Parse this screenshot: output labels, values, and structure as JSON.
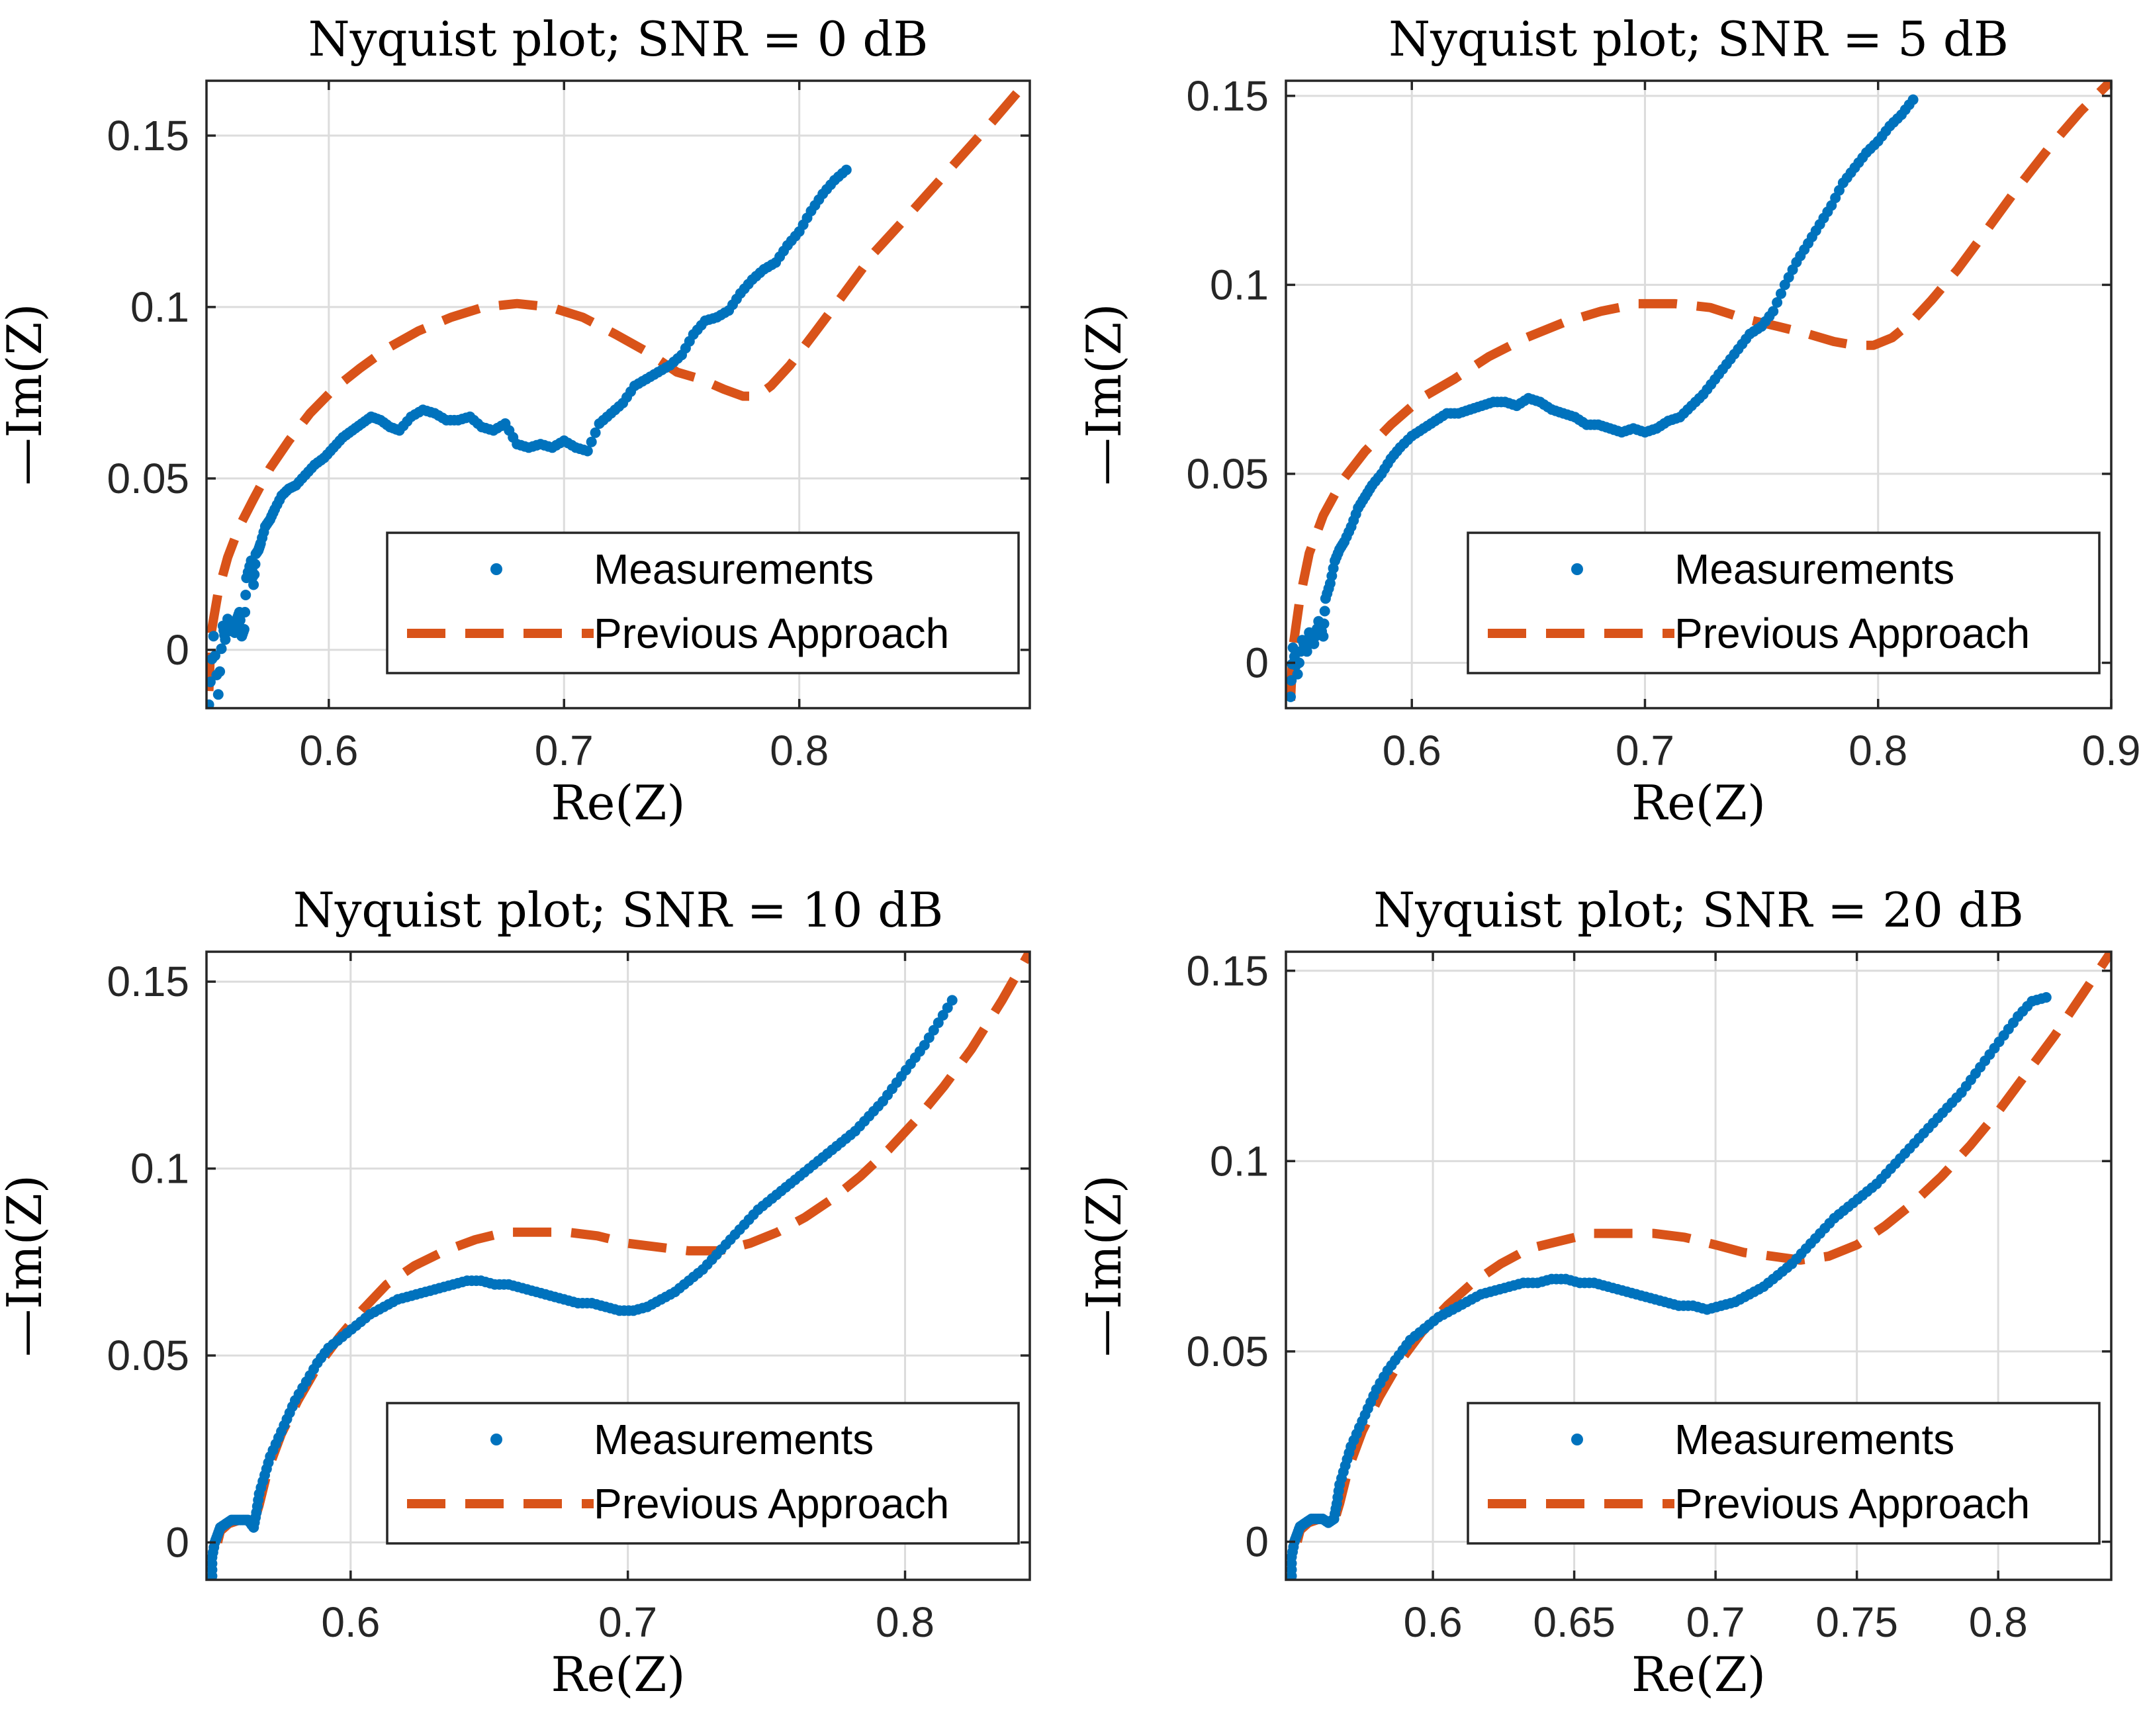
{
  "colors": {
    "measurements": "#0072BD",
    "previous": "#D95319"
  },
  "chart_data": [
    {
      "type": "scatter",
      "title": "Nyquist plot; SNR = 0 dB",
      "xlabel": "Re(Z)",
      "ylabel": "—Im(Z)",
      "xlim": [
        0.548,
        0.898
      ],
      "ylim": [
        -0.017,
        0.166
      ],
      "xticks": [
        0.6,
        0.7,
        0.8
      ],
      "xtick_labels": [
        "0.6",
        "0.7",
        "0.8"
      ],
      "yticks": [
        0,
        0.05,
        0.1,
        0.15
      ],
      "ytick_labels": [
        "0",
        "0.05",
        "0.1",
        "0.15"
      ],
      "legend": [
        "Measurements",
        "Previous Approach"
      ],
      "legend_position": "lower-right",
      "series": [
        {
          "name": "Measurements",
          "style": "dots",
          "x": [
            0.549,
            0.551,
            0.553,
            0.555,
            0.556,
            0.557,
            0.558,
            0.56,
            0.561,
            0.562,
            0.563,
            0.564,
            0.565,
            0.567,
            0.568,
            0.569,
            0.57,
            0.571,
            0.573,
            0.575,
            0.577,
            0.58,
            0.583,
            0.586,
            0.59,
            0.594,
            0.598,
            0.602,
            0.606,
            0.61,
            0.614,
            0.618,
            0.622,
            0.626,
            0.63,
            0.635,
            0.64,
            0.645,
            0.65,
            0.655,
            0.66,
            0.665,
            0.67,
            0.675,
            0.68,
            0.685,
            0.69,
            0.695,
            0.7,
            0.705,
            0.71,
            0.715,
            0.72,
            0.725,
            0.73,
            0.735,
            0.74,
            0.745,
            0.75,
            0.755,
            0.76,
            0.765,
            0.77,
            0.775,
            0.78,
            0.785,
            0.79,
            0.795,
            0.8,
            0.805,
            0.81,
            0.815,
            0.82
          ],
          "y": [
            -0.016,
            0.004,
            -0.013,
            0.007,
            0.003,
            0.009,
            0.006,
            0.005,
            0.009,
            0.011,
            0.004,
            0.006,
            0.021,
            0.026,
            0.019,
            0.028,
            0.029,
            0.031,
            0.036,
            0.038,
            0.041,
            0.045,
            0.047,
            0.048,
            0.051,
            0.054,
            0.056,
            0.059,
            0.062,
            0.064,
            0.066,
            0.068,
            0.067,
            0.065,
            0.064,
            0.068,
            0.07,
            0.069,
            0.067,
            0.067,
            0.068,
            0.065,
            0.064,
            0.066,
            0.06,
            0.059,
            0.06,
            0.059,
            0.061,
            0.059,
            0.058,
            0.066,
            0.069,
            0.072,
            0.077,
            0.079,
            0.081,
            0.083,
            0.086,
            0.092,
            0.096,
            0.097,
            0.099,
            0.104,
            0.108,
            0.111,
            0.113,
            0.118,
            0.122,
            0.128,
            0.133,
            0.137,
            0.14
          ]
        },
        {
          "name": "Previous Approach",
          "style": "dashed",
          "x": [
            0.549,
            0.55,
            0.553,
            0.557,
            0.562,
            0.568,
            0.575,
            0.583,
            0.592,
            0.602,
            0.613,
            0.625,
            0.638,
            0.652,
            0.666,
            0.68,
            0.694,
            0.708,
            0.722,
            0.735,
            0.748,
            0.758,
            0.768,
            0.776,
            0.782,
            0.788,
            0.796,
            0.806,
            0.818,
            0.832,
            0.848,
            0.865,
            0.882,
            0.897
          ],
          "y": [
            -0.012,
            0.005,
            0.017,
            0.027,
            0.036,
            0.044,
            0.053,
            0.061,
            0.069,
            0.076,
            0.082,
            0.088,
            0.093,
            0.097,
            0.1,
            0.101,
            0.1,
            0.097,
            0.092,
            0.087,
            0.081,
            0.079,
            0.076,
            0.074,
            0.074,
            0.077,
            0.083,
            0.092,
            0.103,
            0.116,
            0.128,
            0.141,
            0.154,
            0.166
          ]
        }
      ]
    },
    {
      "type": "scatter",
      "title": "Nyquist plot; SNR = 5 dB",
      "xlabel": "Re(Z)",
      "ylabel": "—Im(Z)",
      "xlim": [
        0.546,
        0.9
      ],
      "ylim": [
        -0.012,
        0.154
      ],
      "xticks": [
        0.6,
        0.7,
        0.8,
        0.9
      ],
      "xtick_labels": [
        "0.6",
        "0.7",
        "0.8",
        "0.9"
      ],
      "yticks": [
        0,
        0.05,
        0.1,
        0.15
      ],
      "ytick_labels": [
        "0",
        "0.05",
        "0.1",
        "0.15"
      ],
      "legend": [
        "Measurements",
        "Previous Approach"
      ],
      "legend_position": "lower-right",
      "series": [
        {
          "name": "Measurements",
          "style": "dots",
          "x": [
            0.548,
            0.549,
            0.551,
            0.553,
            0.555,
            0.556,
            0.558,
            0.56,
            0.562,
            0.563,
            0.565,
            0.567,
            0.569,
            0.571,
            0.574,
            0.577,
            0.58,
            0.583,
            0.587,
            0.591,
            0.595,
            0.6,
            0.605,
            0.61,
            0.615,
            0.62,
            0.625,
            0.63,
            0.635,
            0.64,
            0.645,
            0.65,
            0.655,
            0.66,
            0.665,
            0.67,
            0.675,
            0.68,
            0.685,
            0.69,
            0.695,
            0.7,
            0.705,
            0.71,
            0.715,
            0.72,
            0.725,
            0.73,
            0.735,
            0.74,
            0.745,
            0.75,
            0.755,
            0.76,
            0.765,
            0.77,
            0.775,
            0.78,
            0.785,
            0.79,
            0.795,
            0.8,
            0.805,
            0.81,
            0.815
          ],
          "y": [
            -0.009,
            0.004,
            -0.003,
            0.006,
            0.003,
            0.008,
            0.005,
            0.011,
            0.007,
            0.017,
            0.021,
            0.027,
            0.03,
            0.032,
            0.036,
            0.041,
            0.044,
            0.047,
            0.05,
            0.054,
            0.057,
            0.06,
            0.062,
            0.064,
            0.066,
            0.066,
            0.067,
            0.068,
            0.069,
            0.069,
            0.068,
            0.07,
            0.069,
            0.067,
            0.066,
            0.065,
            0.063,
            0.063,
            0.062,
            0.061,
            0.062,
            0.061,
            0.062,
            0.064,
            0.065,
            0.068,
            0.071,
            0.075,
            0.079,
            0.083,
            0.087,
            0.089,
            0.093,
            0.1,
            0.106,
            0.111,
            0.116,
            0.121,
            0.127,
            0.131,
            0.135,
            0.138,
            0.142,
            0.145,
            0.149
          ]
        },
        {
          "name": "Previous Approach",
          "style": "dashed",
          "x": [
            0.548,
            0.549,
            0.552,
            0.556,
            0.562,
            0.57,
            0.58,
            0.591,
            0.604,
            0.618,
            0.633,
            0.649,
            0.665,
            0.681,
            0.697,
            0.713,
            0.728,
            0.743,
            0.757,
            0.77,
            0.781,
            0.79,
            0.798,
            0.806,
            0.814,
            0.823,
            0.834,
            0.846,
            0.859,
            0.873,
            0.887,
            0.9
          ],
          "y": [
            -0.01,
            0.004,
            0.017,
            0.029,
            0.039,
            0.048,
            0.056,
            0.063,
            0.07,
            0.075,
            0.081,
            0.086,
            0.09,
            0.093,
            0.095,
            0.095,
            0.094,
            0.091,
            0.089,
            0.087,
            0.085,
            0.084,
            0.084,
            0.086,
            0.09,
            0.096,
            0.104,
            0.114,
            0.125,
            0.136,
            0.146,
            0.154
          ]
        }
      ]
    },
    {
      "type": "scatter",
      "title": "Nyquist plot; SNR = 10 dB",
      "xlabel": "Re(Z)",
      "ylabel": "—Im(Z)",
      "xlim": [
        0.548,
        0.845
      ],
      "ylim": [
        -0.01,
        0.158
      ],
      "xticks": [
        0.6,
        0.7,
        0.8
      ],
      "xtick_labels": [
        "0.6",
        "0.7",
        "0.8"
      ],
      "yticks": [
        0,
        0.05,
        0.1,
        0.15
      ],
      "ytick_labels": [
        "0",
        "0.05",
        "0.1",
        "0.15"
      ],
      "legend": [
        "Measurements",
        "Previous Approach"
      ],
      "legend_position": "lower-right",
      "series": [
        {
          "name": "Measurements",
          "style": "dots",
          "x": [
            0.55,
            0.55,
            0.551,
            0.552,
            0.553,
            0.555,
            0.557,
            0.559,
            0.561,
            0.563,
            0.565,
            0.566,
            0.567,
            0.569,
            0.571,
            0.574,
            0.577,
            0.58,
            0.584,
            0.588,
            0.592,
            0.597,
            0.602,
            0.607,
            0.612,
            0.617,
            0.622,
            0.627,
            0.632,
            0.637,
            0.642,
            0.647,
            0.652,
            0.657,
            0.662,
            0.667,
            0.672,
            0.677,
            0.682,
            0.687,
            0.692,
            0.697,
            0.702,
            0.707,
            0.712,
            0.717,
            0.722,
            0.727,
            0.732,
            0.737,
            0.742,
            0.747,
            0.752,
            0.757,
            0.762,
            0.767,
            0.772,
            0.777,
            0.782,
            0.787,
            0.792,
            0.797,
            0.802,
            0.807,
            0.812,
            0.817
          ],
          "y": [
            -0.009,
            -0.004,
            0.0,
            0.002,
            0.004,
            0.005,
            0.006,
            0.006,
            0.006,
            0.006,
            0.004,
            0.008,
            0.013,
            0.018,
            0.023,
            0.028,
            0.033,
            0.038,
            0.043,
            0.048,
            0.052,
            0.055,
            0.058,
            0.061,
            0.063,
            0.065,
            0.066,
            0.067,
            0.068,
            0.069,
            0.07,
            0.07,
            0.069,
            0.069,
            0.068,
            0.067,
            0.066,
            0.065,
            0.064,
            0.064,
            0.063,
            0.062,
            0.062,
            0.063,
            0.065,
            0.067,
            0.07,
            0.073,
            0.077,
            0.081,
            0.085,
            0.089,
            0.092,
            0.095,
            0.098,
            0.101,
            0.104,
            0.107,
            0.11,
            0.114,
            0.118,
            0.123,
            0.128,
            0.133,
            0.139,
            0.145
          ]
        },
        {
          "name": "Previous Approach",
          "style": "dashed",
          "x": [
            0.552,
            0.553,
            0.556,
            0.56,
            0.563,
            0.565,
            0.567,
            0.57,
            0.575,
            0.581,
            0.588,
            0.596,
            0.604,
            0.613,
            0.623,
            0.634,
            0.645,
            0.656,
            0.667,
            0.678,
            0.689,
            0.7,
            0.711,
            0.722,
            0.733,
            0.744,
            0.754,
            0.764,
            0.774,
            0.784,
            0.794,
            0.804,
            0.814,
            0.824,
            0.835,
            0.845
          ],
          "y": [
            0.0,
            0.003,
            0.005,
            0.006,
            0.006,
            0.005,
            0.01,
            0.019,
            0.029,
            0.038,
            0.047,
            0.055,
            0.062,
            0.069,
            0.074,
            0.078,
            0.081,
            0.083,
            0.083,
            0.083,
            0.082,
            0.08,
            0.079,
            0.078,
            0.078,
            0.08,
            0.083,
            0.087,
            0.092,
            0.098,
            0.105,
            0.113,
            0.122,
            0.132,
            0.145,
            0.158
          ]
        }
      ]
    },
    {
      "type": "scatter",
      "title": "Nyquist plot; SNR = 20 dB",
      "xlabel": "Re(Z)",
      "ylabel": "—Im(Z)",
      "xlim": [
        0.548,
        0.84
      ],
      "ylim": [
        -0.01,
        0.155
      ],
      "xticks": [
        0.6,
        0.65,
        0.7,
        0.75,
        0.8
      ],
      "xtick_labels": [
        "0.6",
        "0.65",
        "0.7",
        "0.75",
        "0.8"
      ],
      "yticks": [
        0,
        0.05,
        0.1,
        0.15
      ],
      "ytick_labels": [
        "0",
        "0.05",
        "0.1",
        "0.15"
      ],
      "legend": [
        "Measurements",
        "Previous Approach"
      ],
      "legend_position": "lower-right",
      "series": [
        {
          "name": "Measurements",
          "style": "dots",
          "x": [
            0.55,
            0.55,
            0.551,
            0.552,
            0.553,
            0.555,
            0.557,
            0.559,
            0.561,
            0.563,
            0.565,
            0.566,
            0.567,
            0.569,
            0.571,
            0.574,
            0.577,
            0.58,
            0.584,
            0.588,
            0.592,
            0.597,
            0.602,
            0.607,
            0.612,
            0.617,
            0.622,
            0.627,
            0.632,
            0.637,
            0.642,
            0.647,
            0.652,
            0.657,
            0.662,
            0.667,
            0.672,
            0.677,
            0.682,
            0.687,
            0.692,
            0.697,
            0.702,
            0.707,
            0.712,
            0.717,
            0.722,
            0.727,
            0.732,
            0.737,
            0.742,
            0.747,
            0.752,
            0.757,
            0.762,
            0.767,
            0.772,
            0.777,
            0.782,
            0.787,
            0.792,
            0.797,
            0.802,
            0.807,
            0.812,
            0.817
          ],
          "y": [
            -0.009,
            -0.004,
            0.0,
            0.002,
            0.004,
            0.005,
            0.006,
            0.006,
            0.006,
            0.005,
            0.006,
            0.01,
            0.015,
            0.02,
            0.025,
            0.03,
            0.035,
            0.04,
            0.045,
            0.049,
            0.053,
            0.056,
            0.059,
            0.061,
            0.063,
            0.065,
            0.066,
            0.067,
            0.068,
            0.068,
            0.069,
            0.069,
            0.068,
            0.068,
            0.067,
            0.066,
            0.065,
            0.064,
            0.063,
            0.062,
            0.062,
            0.061,
            0.062,
            0.063,
            0.065,
            0.067,
            0.07,
            0.073,
            0.077,
            0.081,
            0.085,
            0.088,
            0.091,
            0.094,
            0.098,
            0.102,
            0.106,
            0.11,
            0.114,
            0.118,
            0.123,
            0.128,
            0.133,
            0.138,
            0.142,
            0.143
          ]
        },
        {
          "name": "Previous Approach",
          "style": "dashed",
          "x": [
            0.552,
            0.553,
            0.556,
            0.56,
            0.563,
            0.565,
            0.567,
            0.57,
            0.575,
            0.581,
            0.588,
            0.596,
            0.605,
            0.614,
            0.624,
            0.634,
            0.645,
            0.656,
            0.667,
            0.678,
            0.689,
            0.7,
            0.71,
            0.72,
            0.73,
            0.74,
            0.75,
            0.76,
            0.77,
            0.78,
            0.79,
            0.8,
            0.81,
            0.82,
            0.83,
            0.84
          ],
          "y": [
            0.0,
            0.003,
            0.005,
            0.006,
            0.006,
            0.005,
            0.01,
            0.019,
            0.029,
            0.038,
            0.047,
            0.055,
            0.062,
            0.068,
            0.073,
            0.077,
            0.079,
            0.081,
            0.081,
            0.081,
            0.08,
            0.078,
            0.076,
            0.075,
            0.074,
            0.075,
            0.078,
            0.083,
            0.089,
            0.096,
            0.104,
            0.113,
            0.123,
            0.133,
            0.144,
            0.155
          ]
        }
      ]
    }
  ]
}
